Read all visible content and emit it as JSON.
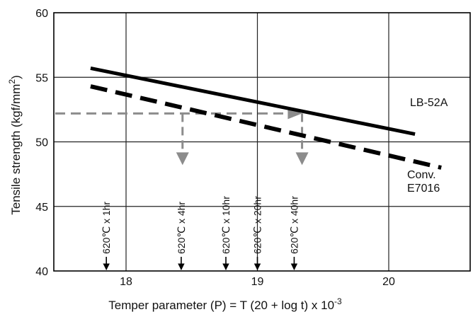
{
  "chart_data": {
    "type": "line",
    "title": "",
    "xlabel": "Temper parameter (P) = T (20 + log t) x 10",
    "xlabel_exponent": "-3",
    "ylabel": "Tensile strength (kgf/mm",
    "ylabel_exponent": "2",
    "ylabel_close": ")",
    "xlim": [
      17.45,
      20.62
    ],
    "ylim": [
      40,
      60
    ],
    "x_ticks": [
      "18",
      "19",
      "20"
    ],
    "x_tick_values": [
      18,
      19,
      20
    ],
    "y_ticks": [
      "40",
      "45",
      "50",
      "55",
      "60"
    ],
    "y_tick_values": [
      40,
      45,
      50,
      55,
      60
    ],
    "grid": true,
    "series": [
      {
        "name": "LB-52A",
        "style": "solid",
        "color": "#000000",
        "x": [
          17.73,
          20.2
        ],
        "y": [
          55.7,
          50.6
        ]
      },
      {
        "name": "Conv.\nE7016",
        "name_lines": [
          "Conv.",
          "E7016"
        ],
        "style": "dashed",
        "color": "#000000",
        "x": [
          17.73,
          20.4
        ],
        "y": [
          54.3,
          48.0
        ]
      }
    ],
    "reference_level": {
      "y": 52.2,
      "x_from": 17.45,
      "x_to": 19.35,
      "color": "#8c8c8c",
      "drops": [
        {
          "x": 18.43,
          "y_from": 52.2,
          "y_to": 48.2
        },
        {
          "x": 19.34,
          "y_from": 52.2,
          "y_to": 48.2
        }
      ]
    },
    "time_markers": [
      {
        "label": "620℃ x 1hr",
        "x": 17.85
      },
      {
        "label": "620℃ x 4hr",
        "x": 18.42
      },
      {
        "label": "620℃ x 10hr",
        "x": 18.76
      },
      {
        "label": "620℃ x 20hr",
        "x": 19.0
      },
      {
        "label": "620℃ x 40hr",
        "x": 19.28
      }
    ]
  }
}
